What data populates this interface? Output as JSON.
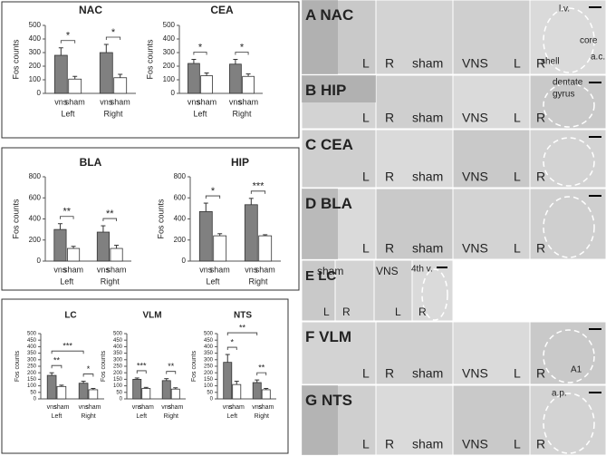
{
  "chart_data": [
    {
      "type": "bar",
      "title": "NAC",
      "y_label": "Fos counts",
      "categories": [
        "Left",
        "Right"
      ],
      "ylim": [
        0,
        500
      ],
      "yticks": [
        0,
        100,
        200,
        300,
        400,
        500
      ],
      "series": [
        {
          "name": "vns",
          "color": "#808080",
          "values": [
            280,
            300
          ],
          "errors": [
            55,
            60
          ]
        },
        {
          "name": "sham",
          "color": "#ffffff",
          "values": [
            105,
            115
          ],
          "errors": [
            20,
            25
          ]
        }
      ],
      "annotations": [
        {
          "text": "*",
          "categories": [
            "Left"
          ]
        },
        {
          "text": "*",
          "categories": [
            "Right"
          ]
        }
      ]
    },
    {
      "type": "bar",
      "title": "CEA",
      "y_label": "Fos counts",
      "categories": [
        "Left",
        "Right"
      ],
      "ylim": [
        0,
        500
      ],
      "yticks": [
        0,
        100,
        200,
        300,
        400,
        500
      ],
      "series": [
        {
          "name": "vns",
          "color": "#808080",
          "values": [
            220,
            215
          ],
          "errors": [
            30,
            35
          ]
        },
        {
          "name": "sham",
          "color": "#ffffff",
          "values": [
            130,
            125
          ],
          "errors": [
            20,
            18
          ]
        }
      ],
      "annotations": [
        {
          "text": "*",
          "categories": [
            "Left"
          ]
        },
        {
          "text": "*",
          "categories": [
            "Right"
          ]
        }
      ]
    },
    {
      "type": "bar",
      "title": "BLA",
      "y_label": "Fos counts",
      "categories": [
        "Left",
        "Right"
      ],
      "ylim": [
        0,
        800
      ],
      "yticks": [
        0,
        200,
        400,
        600,
        800
      ],
      "series": [
        {
          "name": "vns",
          "color": "#808080",
          "values": [
            300,
            275
          ],
          "errors": [
            55,
            60
          ]
        },
        {
          "name": "sham",
          "color": "#ffffff",
          "values": [
            120,
            120
          ],
          "errors": [
            20,
            30
          ]
        }
      ],
      "annotations": [
        {
          "text": "**",
          "categories": [
            "Left"
          ]
        },
        {
          "text": "**",
          "categories": [
            "Right"
          ]
        }
      ]
    },
    {
      "type": "bar",
      "title": "HIP",
      "y_label": "Fos counts",
      "categories": [
        "Left",
        "Right"
      ],
      "ylim": [
        0,
        800
      ],
      "yticks": [
        0,
        200,
        400,
        600,
        800
      ],
      "series": [
        {
          "name": "vns",
          "color": "#808080",
          "values": [
            470,
            535
          ],
          "errors": [
            80,
            60
          ]
        },
        {
          "name": "sham",
          "color": "#ffffff",
          "values": [
            240,
            240
          ],
          "errors": [
            20,
            10
          ]
        }
      ],
      "annotations": [
        {
          "text": "*",
          "categories": [
            "Left"
          ]
        },
        {
          "text": "***",
          "categories": [
            "Right"
          ]
        }
      ]
    },
    {
      "type": "bar",
      "title": "LC",
      "y_label": "Fos counts",
      "categories": [
        "Left",
        "Right"
      ],
      "ylim": [
        0,
        500
      ],
      "yticks": [
        0,
        50,
        100,
        150,
        200,
        250,
        300,
        350,
        400,
        450,
        500
      ],
      "series": [
        {
          "name": "vns",
          "color": "#808080",
          "values": [
            180,
            120
          ],
          "errors": [
            20,
            15
          ]
        },
        {
          "name": "sham",
          "color": "#ffffff",
          "values": [
            95,
            70
          ],
          "errors": [
            10,
            10
          ]
        }
      ],
      "annotations": [
        {
          "text": "**",
          "categories": [
            "Left"
          ]
        },
        {
          "text": "*",
          "categories": [
            "Right"
          ]
        },
        {
          "text": "***",
          "categories": [
            "Left",
            "Right"
          ]
        }
      ]
    },
    {
      "type": "bar",
      "title": "VLM",
      "y_label": "Fos counts",
      "categories": [
        "Left",
        "Right"
      ],
      "ylim": [
        0,
        500
      ],
      "yticks": [
        0,
        50,
        100,
        150,
        200,
        250,
        300,
        350,
        400,
        450,
        500
      ],
      "series": [
        {
          "name": "vns",
          "color": "#808080",
          "values": [
            150,
            140
          ],
          "errors": [
            10,
            15
          ]
        },
        {
          "name": "sham",
          "color": "#ffffff",
          "values": [
            80,
            75
          ],
          "errors": [
            8,
            10
          ]
        }
      ],
      "annotations": [
        {
          "text": "***",
          "categories": [
            "Left"
          ]
        },
        {
          "text": "**",
          "categories": [
            "Right"
          ]
        }
      ]
    },
    {
      "type": "bar",
      "title": "NTS",
      "y_label": "Fos counts",
      "categories": [
        "Left",
        "Right"
      ],
      "ylim": [
        0,
        500
      ],
      "yticks": [
        0,
        50,
        100,
        150,
        200,
        250,
        300,
        350,
        400,
        450,
        500
      ],
      "series": [
        {
          "name": "vns",
          "color": "#808080",
          "values": [
            280,
            125
          ],
          "errors": [
            60,
            20
          ]
        },
        {
          "name": "sham",
          "color": "#ffffff",
          "values": [
            110,
            70
          ],
          "errors": [
            25,
            10
          ]
        }
      ],
      "annotations": [
        {
          "text": "*",
          "categories": [
            "Left"
          ]
        },
        {
          "text": "**",
          "categories": [
            "Right"
          ]
        },
        {
          "text": "**",
          "categories": [
            "Left",
            "Right"
          ]
        }
      ]
    }
  ],
  "micrographs": [
    {
      "letter": "A",
      "region": "NAC",
      "labels": [
        "L",
        "R",
        "sham",
        "VNS",
        "L",
        "R"
      ],
      "notes": [
        "l.v.",
        "core",
        "a.c.",
        "shell"
      ]
    },
    {
      "letter": "B",
      "region": "HIP",
      "labels": [
        "L",
        "R",
        "sham",
        "VNS",
        "L",
        "R"
      ],
      "notes": [
        "dentate",
        "gyrus"
      ]
    },
    {
      "letter": "C",
      "region": "CEA",
      "labels": [
        "L",
        "R",
        "sham",
        "VNS",
        "L",
        "R"
      ],
      "notes": []
    },
    {
      "letter": "D",
      "region": "BLA",
      "labels": [
        "L",
        "R",
        "sham",
        "VNS",
        "L",
        "R"
      ],
      "notes": []
    },
    {
      "letter": "E",
      "region": "LC",
      "labels": [
        "sham",
        "VNS",
        "L",
        "R",
        "L",
        "R"
      ],
      "notes": [
        "4th v."
      ]
    },
    {
      "letter": "F",
      "region": "VLM",
      "labels": [
        "L",
        "R",
        "sham",
        "VNS",
        "L",
        "R"
      ],
      "notes": [
        "A1"
      ]
    },
    {
      "letter": "G",
      "region": "NTS",
      "labels": [
        "L",
        "R",
        "sham",
        "VNS",
        "L",
        "R"
      ],
      "notes": [
        "a.p."
      ]
    }
  ]
}
